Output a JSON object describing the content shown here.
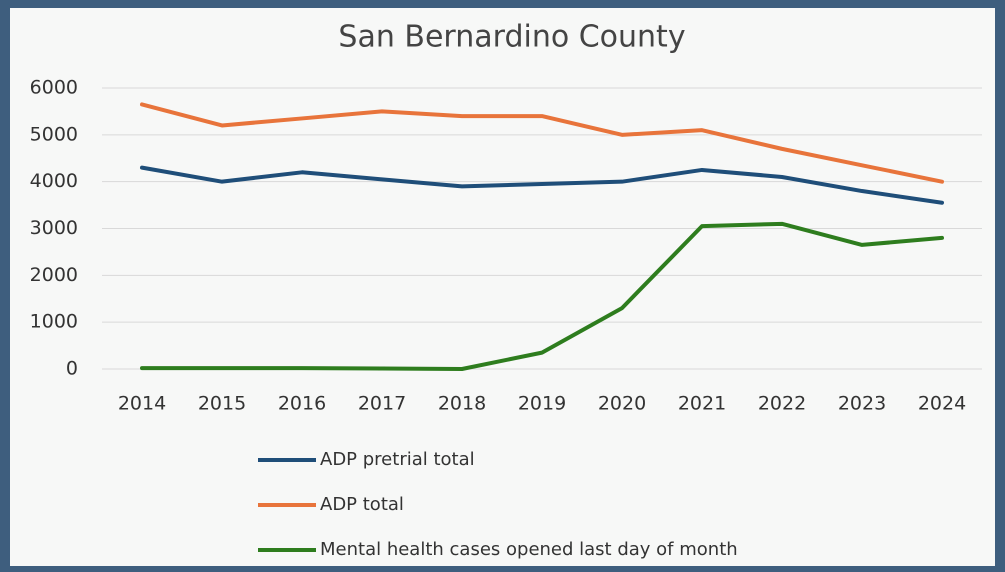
{
  "chart_data": {
    "type": "line",
    "title": "San Bernardino County",
    "categories": [
      "2014",
      "2015",
      "2016",
      "2017",
      "2018",
      "2019",
      "2020",
      "2021",
      "2022",
      "2023",
      "2024"
    ],
    "series": [
      {
        "name": "ADP pretrial total",
        "color": "#1f4e79",
        "values": [
          4300,
          4000,
          4200,
          4050,
          3900,
          3950,
          4000,
          4250,
          4100,
          3800,
          3550
        ]
      },
      {
        "name": "ADP total",
        "color": "#e8743b",
        "values": [
          5650,
          5200,
          5350,
          5500,
          5400,
          5400,
          5000,
          5100,
          4700,
          4350,
          4000
        ]
      },
      {
        "name": "Mental health cases opened last day of month",
        "color": "#2e7d1e",
        "values": [
          20,
          20,
          20,
          10,
          0,
          350,
          1300,
          3050,
          3100,
          2650,
          2800
        ]
      }
    ],
    "ylim": [
      0,
      6000
    ],
    "yticks": [
      0,
      1000,
      2000,
      3000,
      4000,
      5000,
      6000
    ],
    "grid": true,
    "legend": "bottom"
  }
}
